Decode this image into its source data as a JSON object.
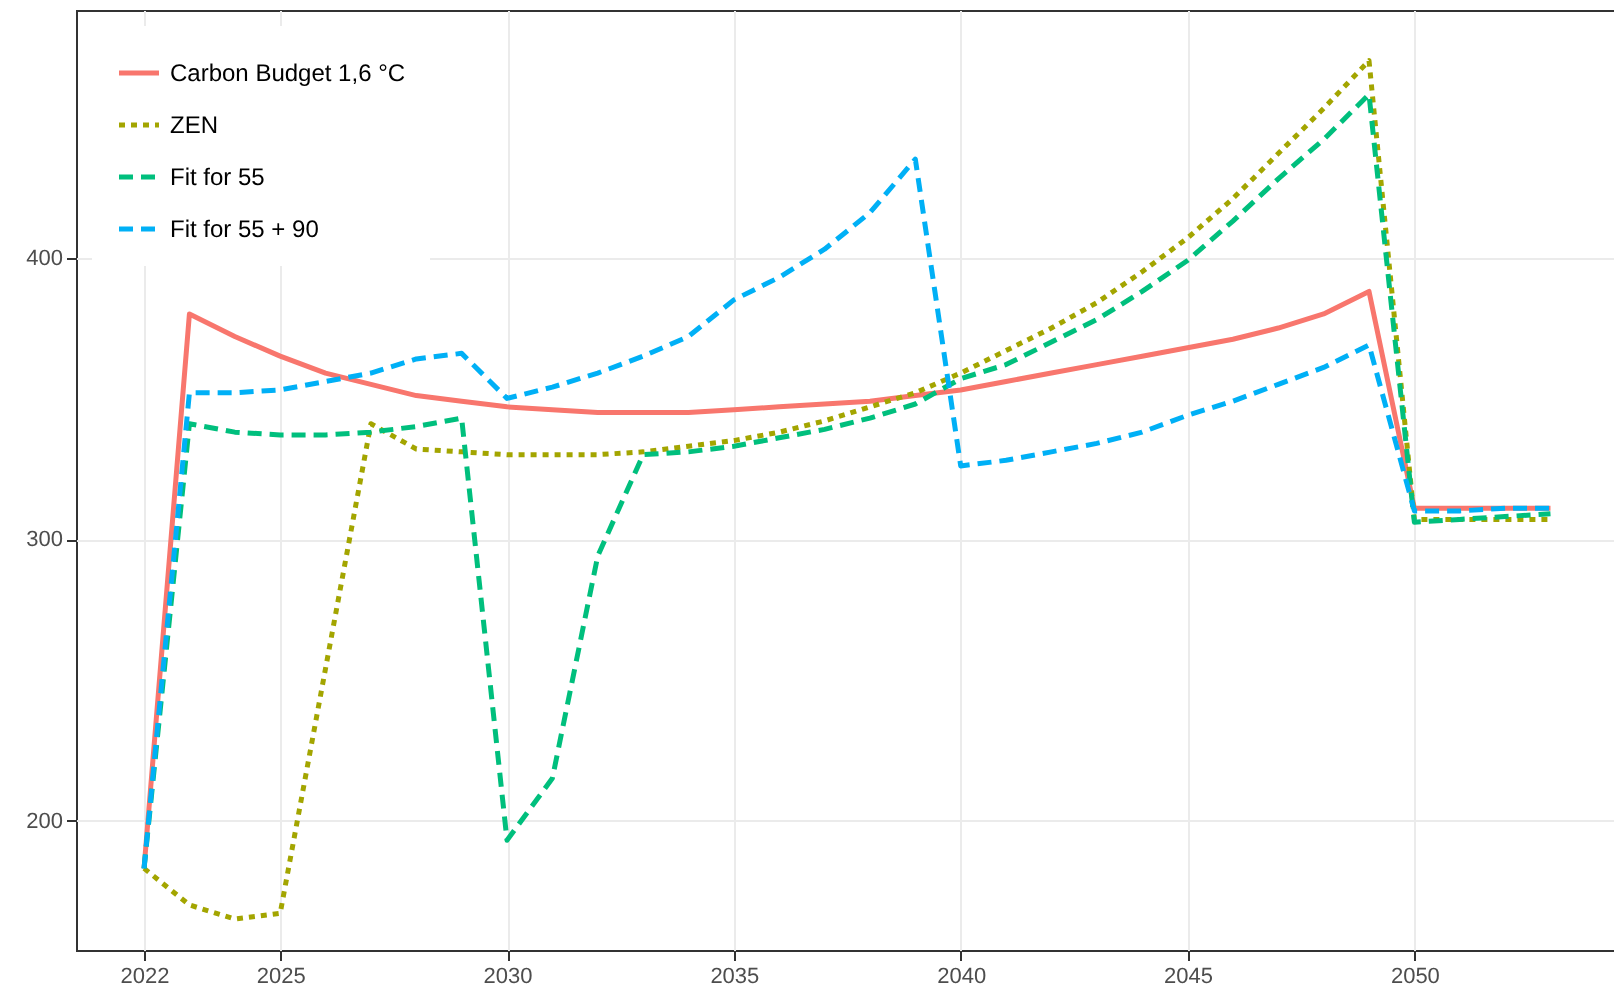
{
  "chart_data": {
    "type": "line",
    "xlim": [
      2020.5,
      2054.4
    ],
    "ylim": [
      154,
      488
    ],
    "xticks": [
      2022,
      2025,
      2030,
      2035,
      2040,
      2045,
      2050
    ],
    "yticks": [
      200,
      300,
      400
    ],
    "grid": true,
    "legend": "top left",
    "series": [
      {
        "name": "Carbon Budget 1,6 °C",
        "color": "#f8766d",
        "line_style": "solid",
        "x": [
          2022,
          2023,
          2024,
          2025,
          2026,
          2027,
          2028,
          2029,
          2030,
          2031,
          2032,
          2033,
          2034,
          2035,
          2036,
          2037,
          2038,
          2039,
          2040,
          2041,
          2042,
          2043,
          2044,
          2045,
          2046,
          2047,
          2048,
          2049,
          2050,
          2051,
          2052,
          2053
        ],
        "values": [
          183,
          380,
          372,
          365,
          359,
          355,
          351,
          349,
          347,
          346,
          345,
          345,
          345,
          346,
          347,
          348,
          349,
          351,
          353,
          356,
          359,
          362,
          365,
          368,
          371,
          375,
          380,
          388,
          311,
          311,
          311,
          311
        ]
      },
      {
        "name": "ZEN",
        "color": "#a3a500",
        "line_style": "dotted",
        "x": [
          2022,
          2023,
          2024,
          2025,
          2027,
          2028,
          2029,
          2030,
          2031,
          2032,
          2033,
          2034,
          2035,
          2036,
          2037,
          2038,
          2039,
          2040,
          2041,
          2042,
          2043,
          2044,
          2045,
          2046,
          2047,
          2048,
          2049,
          2050,
          2051,
          2052,
          2053
        ],
        "values": [
          183,
          170,
          165,
          167,
          341,
          332,
          331,
          330,
          330,
          330,
          331,
          333,
          335,
          338,
          342,
          347,
          352,
          359,
          367,
          375,
          384,
          395,
          407,
          421,
          437,
          453,
          470,
          307,
          307,
          307,
          307
        ]
      },
      {
        "name": "Fit for 55",
        "color": "#00bf7d",
        "line_style": "dashed",
        "x": [
          2022,
          2023,
          2024,
          2025,
          2026,
          2027,
          2028,
          2029,
          2030,
          2031,
          2032,
          2033,
          2034,
          2035,
          2036,
          2037,
          2038,
          2039,
          2040,
          2041,
          2042,
          2043,
          2044,
          2045,
          2046,
          2047,
          2048,
          2049,
          2050,
          2051,
          2052,
          2053
        ],
        "values": [
          183,
          341,
          338,
          337,
          337,
          338,
          340,
          343,
          193,
          215,
          294,
          330,
          331,
          333,
          336,
          339,
          343,
          348,
          357,
          362,
          370,
          378,
          388,
          399,
          413,
          428,
          442,
          458,
          306,
          307,
          308,
          309
        ]
      },
      {
        "name": "Fit for 55 + 90",
        "color": "#00b0f6",
        "line_style": "dashed",
        "x": [
          2022,
          2023,
          2024,
          2025,
          2026,
          2027,
          2028,
          2029,
          2030,
          2031,
          2032,
          2033,
          2034,
          2035,
          2036,
          2037,
          2038,
          2039,
          2040,
          2041,
          2042,
          2043,
          2044,
          2045,
          2046,
          2047,
          2048,
          2049,
          2050,
          2051,
          2052,
          2053
        ],
        "values": [
          183,
          352,
          352,
          353,
          356,
          359,
          364,
          366,
          350,
          354,
          359,
          365,
          372,
          385,
          393,
          403,
          416,
          435,
          326,
          328,
          331,
          334,
          338,
          344,
          349,
          355,
          361,
          369,
          310,
          310,
          311,
          311
        ]
      }
    ]
  }
}
